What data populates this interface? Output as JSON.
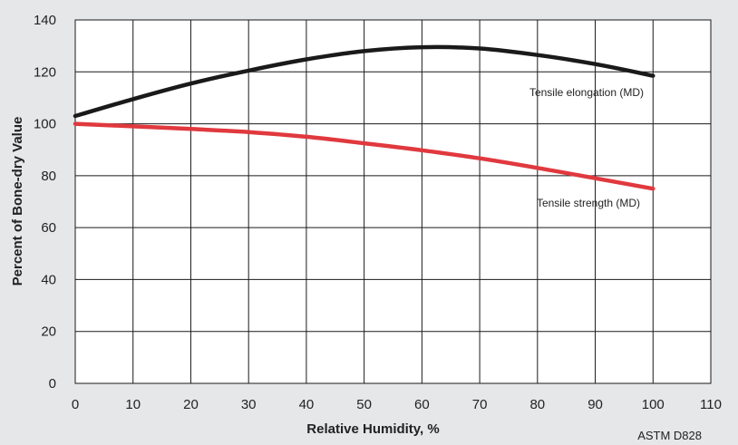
{
  "chart_data": {
    "type": "line",
    "xlabel": "Relative Humidity, %",
    "ylabel": "Percent of Bone-dry Value",
    "xlim": [
      0,
      110
    ],
    "ylim": [
      0,
      140
    ],
    "x_ticks": [
      0,
      10,
      20,
      30,
      40,
      50,
      60,
      70,
      80,
      90,
      100,
      110
    ],
    "y_ticks": [
      0,
      20,
      40,
      60,
      80,
      100,
      120,
      140
    ],
    "grid": true,
    "source_note": "ASTM D828",
    "series": [
      {
        "name": "Tensile elongation (MD)",
        "color": "#1a1a1a",
        "x": [
          0,
          10,
          20,
          30,
          40,
          50,
          60,
          70,
          80,
          90,
          100
        ],
        "y": [
          103,
          109.5,
          115.5,
          120.5,
          124.8,
          128,
          129.5,
          129,
          126.5,
          123,
          118.5
        ]
      },
      {
        "name": "Tensile strength (MD)",
        "color": "#e0393e",
        "x": [
          0,
          10,
          20,
          30,
          40,
          50,
          60,
          70,
          80,
          90,
          100
        ],
        "y": [
          100,
          99,
          98,
          96.8,
          95,
          92.5,
          89.8,
          86.7,
          83,
          79,
          75
        ]
      }
    ]
  }
}
